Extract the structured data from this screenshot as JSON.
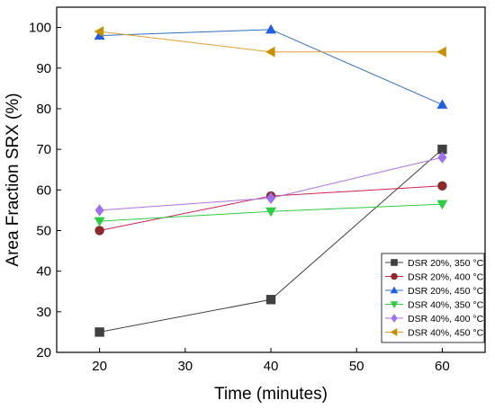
{
  "chart_data": {
    "type": "line",
    "title": "",
    "xlabel": "Time (minutes)",
    "ylabel": "Area Fraction SRX (%)",
    "xlim": [
      15,
      65
    ],
    "ylim": [
      20,
      105
    ],
    "xticks": [
      20,
      30,
      40,
      50,
      60
    ],
    "yticks": [
      20,
      30,
      40,
      50,
      60,
      70,
      80,
      90,
      100
    ],
    "grid": false,
    "legend_position": "bottom-right",
    "x": [
      20,
      40,
      60
    ],
    "series": [
      {
        "name": "DSR 20%, 350 °C",
        "values": [
          25,
          33,
          70
        ],
        "color": "#404040",
        "marker": "square"
      },
      {
        "name": "DSR 20%, 400 °C",
        "values": [
          50,
          58.5,
          61
        ],
        "color": "#d02050",
        "marker_color": "#8b2a2a",
        "marker": "circle"
      },
      {
        "name": "DSR 20%, 450 °C",
        "values": [
          98,
          99.5,
          81
        ],
        "color": "#3070c0",
        "marker_color": "#2060e0",
        "marker": "triangle-up"
      },
      {
        "name": "DSR 40%, 350 °C",
        "values": [
          52.3,
          54.7,
          56.5
        ],
        "color": "#2ecc40",
        "marker": "triangle-down"
      },
      {
        "name": "DSR 40%, 400 °C",
        "values": [
          55,
          58,
          68
        ],
        "color": "#b070e0",
        "marker_color": "#a070f0",
        "marker": "diamond"
      },
      {
        "name": "DSR 40%, 450 °C",
        "values": [
          99,
          94,
          94
        ],
        "color": "#e0a030",
        "marker_color": "#c89000",
        "marker": "triangle-left"
      }
    ]
  }
}
